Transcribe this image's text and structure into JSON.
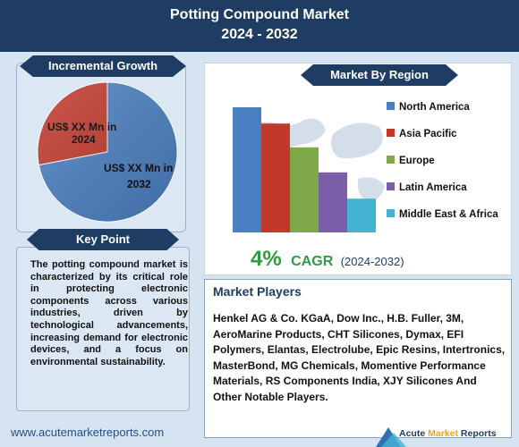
{
  "header": {
    "title_line1": "Potting Compound Market",
    "title_line2": "2024 - 2032"
  },
  "incremental": {
    "banner": "Incremental Growth",
    "label_2024_line1": "US$ XX Mn in",
    "label_2024_line2": "2024",
    "label_2032_line1": "US$ XX Mn in",
    "label_2032_line2": "2032"
  },
  "keypoint": {
    "banner": "Key Point",
    "text": "The potting compound market is characterized by its critical role in protecting electronic components across various industries, driven by technological advancements, increasing demand for electronic devices, and a focus on environmental sustainability."
  },
  "region": {
    "banner": "Market By Region"
  },
  "cagr": {
    "value": "4%",
    "label": "CAGR",
    "period": "(2024-2032)"
  },
  "players": {
    "title": "Market Players",
    "text": "Henkel AG & Co. KGaA, Dow Inc., H.B. Fuller, 3M, AeroMarine Products, CHT Silicones, Dymax, EFI Polymers, Elantas, Electrolube, Epic Resins, Intertronics, MasterBond, MG Chemicals, Momentive Performance Materials, RS Components India, XJY Silicones And Other Notable Players."
  },
  "footer": {
    "url": "www.acutemarketreports.com",
    "logo_word1": "Acute",
    "logo_word2": "Market",
    "logo_word3": "Reports"
  },
  "colors": {
    "navy": "#1f3d63",
    "blue": "#4a7fc1",
    "red": "#c0392b",
    "green": "#7fa84a",
    "purple": "#7a5ea8",
    "cyan": "#45b2d3"
  },
  "chart_data": [
    {
      "type": "pie",
      "labels": [
        "US$ XX Mn in 2024",
        "US$ XX Mn in 2032"
      ],
      "values": [
        28,
        72
      ],
      "colors": [
        "#c0392b",
        "#4a7fc1"
      ]
    },
    {
      "type": "bar",
      "categories": [
        "North America",
        "Asia Pacific",
        "Europe",
        "Latin America",
        "Middle East & Africa"
      ],
      "values": [
        100,
        87,
        68,
        48,
        27
      ],
      "colors": [
        "#4a7fc1",
        "#c0392b",
        "#7fa84a",
        "#7a5ea8",
        "#45b2d3"
      ],
      "legend_position": "right"
    }
  ]
}
